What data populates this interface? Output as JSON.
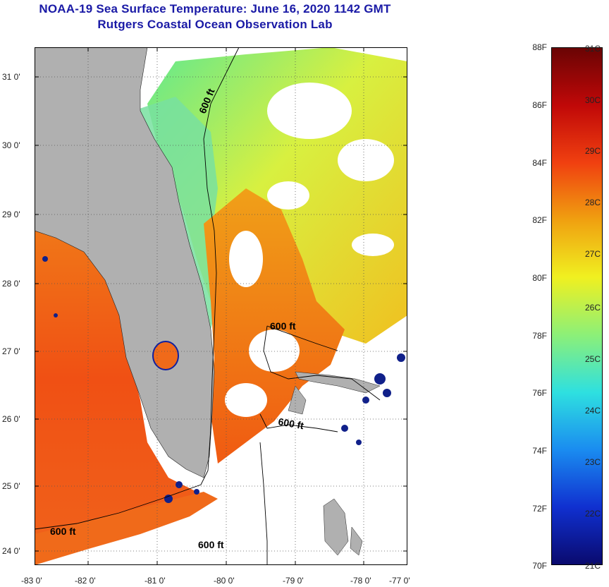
{
  "title": {
    "line1": "NOAA-19 Sea Surface Temperature:  June 16, 2020 1142 GMT",
    "line2": "Rutgers Coastal Ocean Observation Lab"
  },
  "map": {
    "lat_labels": [
      "31 0'",
      "30 0'",
      "29 0'",
      "28 0'",
      "27 0'",
      "26 0'",
      "25 0'",
      "24 0'"
    ],
    "lon_labels": [
      "-83 0'",
      "-82 0'",
      "-81 0'",
      "-80 0'",
      "-79 0'",
      "-78 0'",
      "-77 0'"
    ],
    "contour_labels": [
      "600 ft",
      "600 ft",
      "600 ft",
      "600 ft",
      "600 ft"
    ],
    "colors": {
      "land": "#b0b0b0",
      "cloud": "#ffffff",
      "border": "#000000"
    }
  },
  "colorbar": {
    "f_labels": [
      "88F",
      "86F",
      "84F",
      "82F",
      "80F",
      "78F",
      "76F",
      "74F",
      "72F",
      "70F"
    ],
    "c_labels": [
      "31C",
      "30C",
      "29C",
      "28C",
      "27C",
      "26C",
      "25C",
      "24C",
      "23C",
      "22C",
      "21C"
    ],
    "range_f": [
      70,
      88
    ],
    "range_c": [
      21,
      31
    ],
    "stops": [
      "#0a0a6e",
      "#1030d0",
      "#1a8cf0",
      "#2ee0e0",
      "#8cf078",
      "#f0f020",
      "#f0a010",
      "#f04010",
      "#c00808",
      "#6a0404"
    ]
  }
}
